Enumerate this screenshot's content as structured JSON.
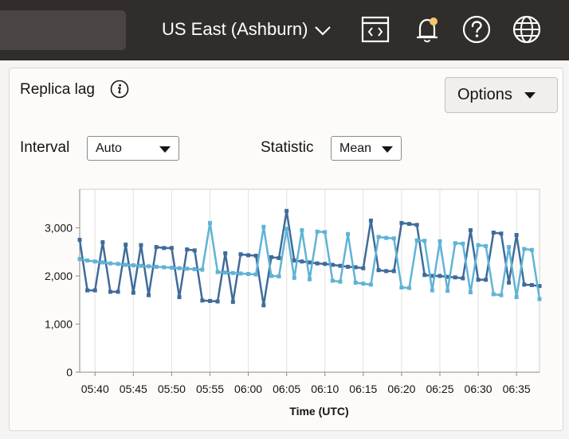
{
  "header": {
    "region_label": "US East (Ashburn)",
    "icons": [
      "code-editor-icon",
      "bell-icon",
      "help-icon",
      "globe-icon"
    ],
    "colors": {
      "bar": "#312d2a",
      "notification_dot": "#f5c66e"
    }
  },
  "panel": {
    "title": "Replica lag",
    "options_label": "Options",
    "interval_label": "Interval",
    "interval_value": "Auto",
    "statistic_label": "Statistic",
    "statistic_value": "Mean"
  },
  "chart_data": {
    "type": "line",
    "title": "",
    "xlabel": "Time (UTC)",
    "ylabel": "",
    "ylim": [
      0,
      3800
    ],
    "xlim": [
      "05:38",
      "06:38"
    ],
    "yticks": [
      0,
      1000,
      2000,
      3000
    ],
    "ytick_labels": [
      "0",
      "1,000",
      "2,000",
      "3,000"
    ],
    "xtick_labels": [
      "05:40",
      "05:45",
      "05:50",
      "05:55",
      "06:00",
      "06:05",
      "06:10",
      "06:15",
      "06:20",
      "06:25",
      "06:30",
      "06:35"
    ],
    "grid": "vertical",
    "series": [
      {
        "color": "#3f6b9a",
        "x": [
          "05:38",
          "05:39",
          "05:40",
          "05:41",
          "05:42",
          "05:43",
          "05:44",
          "05:45",
          "05:46",
          "05:47",
          "05:48",
          "05:49",
          "05:50",
          "05:51",
          "05:52",
          "05:53",
          "05:54",
          "05:55",
          "05:56",
          "05:57",
          "05:58",
          "05:59",
          "06:00",
          "06:01",
          "06:02",
          "06:03",
          "06:04",
          "06:05",
          "06:06",
          "06:07",
          "06:08",
          "06:09",
          "06:10",
          "06:11",
          "06:12",
          "06:13",
          "06:14",
          "06:15",
          "06:16",
          "06:17",
          "06:18",
          "06:19",
          "06:20",
          "06:21",
          "06:22",
          "06:23",
          "06:24",
          "06:25",
          "06:26",
          "06:27",
          "06:28",
          "06:29",
          "06:30",
          "06:31",
          "06:32",
          "06:33",
          "06:34",
          "06:35",
          "06:36",
          "06:37",
          "06:38"
        ],
        "values": [
          2750,
          1700,
          1700,
          2700,
          1670,
          1670,
          2650,
          1650,
          2640,
          1600,
          2600,
          2580,
          2580,
          1560,
          2550,
          2530,
          1490,
          1480,
          1470,
          2470,
          1460,
          2450,
          2430,
          2420,
          1390,
          2390,
          2370,
          3350,
          2320,
          2300,
          2280,
          2260,
          2250,
          2230,
          2210,
          2190,
          2180,
          2160,
          3150,
          2120,
          2100,
          2100,
          3100,
          3080,
          3060,
          2020,
          2000,
          2000,
          1980,
          1970,
          1950,
          2950,
          1920,
          1920,
          2900,
          2880,
          1860,
          2850,
          1820,
          1810,
          1790
        ]
      },
      {
        "color": "#5fb3d6",
        "x": [
          "05:38",
          "05:39",
          "05:40",
          "05:41",
          "05:42",
          "05:43",
          "05:44",
          "05:45",
          "05:46",
          "05:47",
          "05:48",
          "05:49",
          "05:50",
          "05:51",
          "05:52",
          "05:53",
          "05:54",
          "05:55",
          "05:56",
          "05:57",
          "05:58",
          "05:59",
          "06:00",
          "06:01",
          "06:02",
          "06:03",
          "06:04",
          "06:05",
          "06:06",
          "06:07",
          "06:08",
          "06:09",
          "06:10",
          "06:11",
          "06:12",
          "06:13",
          "06:14",
          "06:15",
          "06:16",
          "06:17",
          "06:18",
          "06:19",
          "06:20",
          "06:21",
          "06:22",
          "06:23",
          "06:24",
          "06:25",
          "06:26",
          "06:27",
          "06:28",
          "06:29",
          "06:30",
          "06:31",
          "06:32",
          "06:33",
          "06:34",
          "06:35",
          "06:36",
          "06:37",
          "06:38"
        ],
        "values": [
          2350,
          2320,
          2300,
          2280,
          2260,
          2250,
          2230,
          2220,
          2210,
          2200,
          2190,
          2180,
          2170,
          2160,
          2150,
          2140,
          2130,
          3100,
          2080,
          2070,
          2060,
          2050,
          2040,
          2030,
          3020,
          2000,
          1990,
          2980,
          1960,
          2950,
          1930,
          2920,
          2910,
          1900,
          1880,
          2870,
          1860,
          1840,
          1820,
          2810,
          2790,
          2780,
          1760,
          1750,
          2740,
          2730,
          1700,
          2720,
          1690,
          2680,
          2670,
          1660,
          2640,
          2620,
          1620,
          1600,
          2600,
          1560,
          2560,
          2540,
          1520
        ]
      }
    ]
  }
}
